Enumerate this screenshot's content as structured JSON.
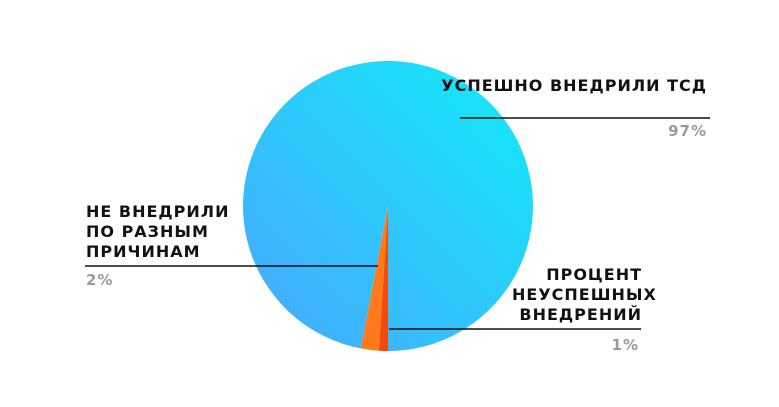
{
  "chart_data": {
    "type": "pie",
    "slices": [
      {
        "label": "УСПЕШНО ВНЕДРИЛИ ТСД",
        "value": 97,
        "value_label": "97%",
        "color": "#1ec8fb"
      },
      {
        "label": "НЕ ВНЕДРИЛИ ПО РАЗНЫМ ПРИЧИНАМ",
        "value": 2,
        "value_label": "2%",
        "color": "#ff7a1a"
      },
      {
        "label": "ПРОЦЕНТ НЕУСПЕШНЫХ ВНЕДРЕНИЙ",
        "value": 1,
        "value_label": "1%",
        "color": "#f04a0c"
      }
    ],
    "gradient": [
      "#4aa6ff",
      "#10ecf8"
    ]
  }
}
